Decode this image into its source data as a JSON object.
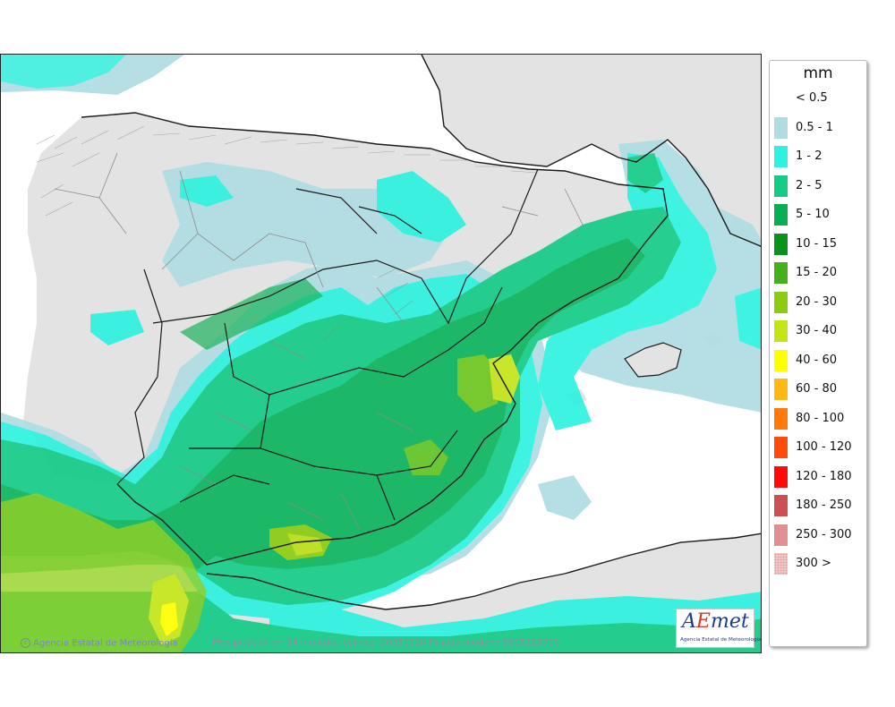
{
  "legend": {
    "unit": "mm",
    "items": [
      {
        "label": "< 0.5",
        "color": "#ffffff"
      },
      {
        "label": "0.5 - 1",
        "color": "#b0dde3"
      },
      {
        "label": "1 - 2",
        "color": "#2ef2df"
      },
      {
        "label": "2 - 5",
        "color": "#14cc87"
      },
      {
        "label": "5 - 10",
        "color": "#0aae50"
      },
      {
        "label": "10 - 15",
        "color": "#07931c"
      },
      {
        "label": "15 - 20",
        "color": "#46b018"
      },
      {
        "label": "20 - 30",
        "color": "#8acc10"
      },
      {
        "label": "30 - 40",
        "color": "#c4e418"
      },
      {
        "label": "40 - 60",
        "color": "#ffff00"
      },
      {
        "label": "60 - 80",
        "color": "#ffb814"
      },
      {
        "label": "80 - 100",
        "color": "#ff7a0a"
      },
      {
        "label": "100 - 120",
        "color": "#ff4a0a"
      },
      {
        "label": "120 - 180",
        "color": "#ff0a0a"
      },
      {
        "label": "180 - 250",
        "color": "#cc5050"
      },
      {
        "label": "250 - 300",
        "color": "#e09090"
      },
      {
        "label": "300 >",
        "color": "#f0c8c8"
      }
    ]
  },
  "footer": {
    "credit": "Agencia Estatal de Meteorología",
    "caption": "Precipitación en 24 h media. Validez: 20251228 Pasada modelo: 2025122700"
  },
  "logo": {
    "sub": "Agencia Estatal de Meteorología"
  },
  "colors": {
    "land": "#e3e3e3",
    "sea": "#ffffff",
    "border": "#1a1a1a",
    "province": "#8c8c8c"
  }
}
